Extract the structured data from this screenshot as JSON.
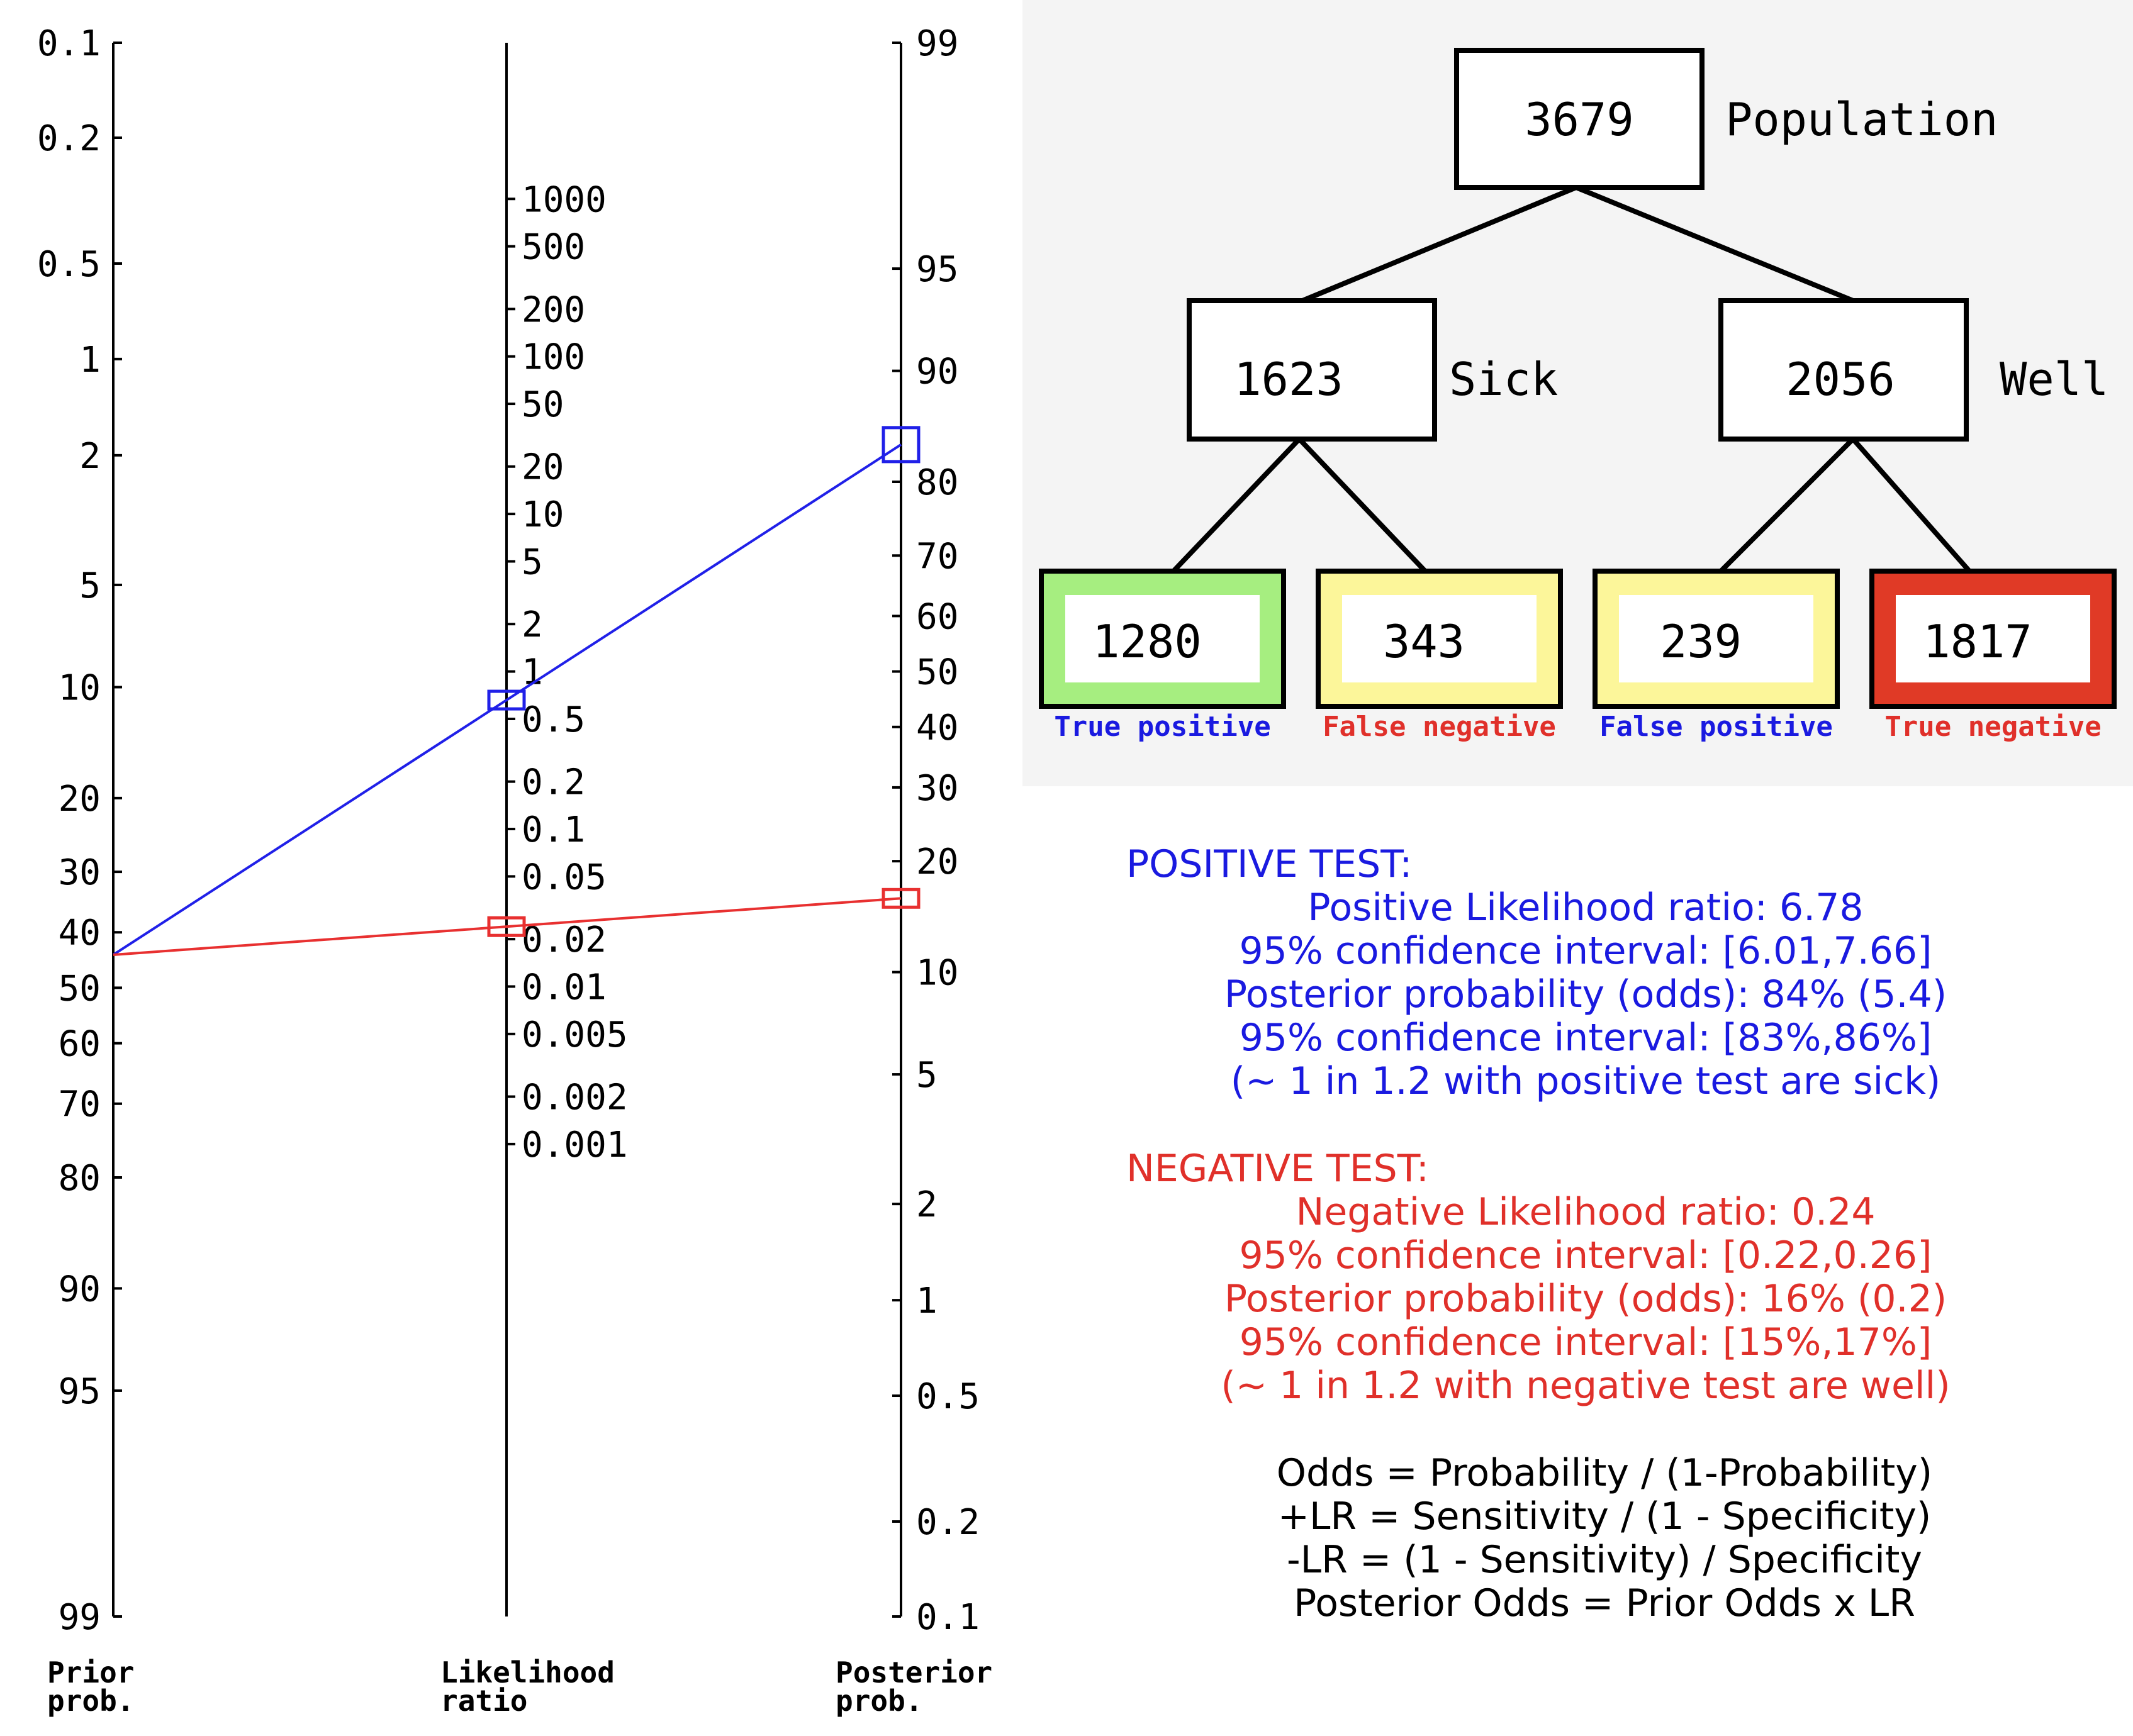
{
  "nomogram": {
    "prior": {
      "ticks": [
        "0.1",
        "0.2",
        "0.5",
        "1",
        "2",
        "5",
        "10",
        "20",
        "30",
        "40",
        "50",
        "60",
        "70",
        "80",
        "90",
        "95",
        "99"
      ],
      "label_line1": "Prior",
      "label_line2": "prob."
    },
    "lr": {
      "ticks": [
        "1000",
        "500",
        "200",
        "100",
        "50",
        "20",
        "10",
        "5",
        "2",
        "1",
        "0.5",
        "0.2",
        "0.1",
        "0.05",
        "0.02",
        "0.01",
        "0.005",
        "0.002",
        "0.001"
      ],
      "label_line1": "Likelihood",
      "label_line2": "ratio"
    },
    "posterior": {
      "ticks": [
        "99",
        "95",
        "90",
        "80",
        "70",
        "60",
        "50",
        "40",
        "30",
        "20",
        "10",
        "5",
        "2",
        "1",
        "0.5",
        "0.2",
        "0.1"
      ],
      "label_line1": "Posterior",
      "label_line2": "prob."
    },
    "colors": {
      "positive": "#2020e8",
      "negative": "#e83030"
    }
  },
  "chart_data": {
    "type": "line",
    "prior_probability_percent": 44,
    "series": [
      {
        "name": "POSITIVE TEST",
        "likelihood_ratio": 6.78,
        "posterior_percent": 84
      },
      {
        "name": "NEGATIVE TEST",
        "likelihood_ratio": 0.24,
        "posterior_percent": 16
      }
    ]
  },
  "tree": {
    "population": {
      "value": "3679",
      "label": "Population"
    },
    "sick": {
      "value": "1623",
      "label": "Sick"
    },
    "well": {
      "value": "2056",
      "label": "Well"
    },
    "leaves": [
      {
        "value": "1280",
        "label": "True positive",
        "fill": "#a6ee80",
        "label_color": "#1a1ae0"
      },
      {
        "value": "343",
        "label": "False negative",
        "fill": "#fcf69a",
        "label_color": "#e0302a"
      },
      {
        "value": "239",
        "label": "False positive",
        "fill": "#fcf69a",
        "label_color": "#1a1ae0"
      },
      {
        "value": "1817",
        "label": "True negative",
        "fill": "#e03a26",
        "label_color": "#e0302a"
      }
    ]
  },
  "positive": {
    "heading": "POSITIVE TEST:",
    "lines": [
      "Positive Likelihood ratio: 6.78",
      "95% confidence interval: [6.01,7.66]",
      "Posterior probability (odds): 84% (5.4)",
      "95% confidence interval: [83%,86%]",
      "(~ 1 in 1.2 with positive test are sick)"
    ]
  },
  "negative": {
    "heading": "NEGATIVE TEST:",
    "lines": [
      "Negative Likelihood ratio: 0.24",
      "95% confidence interval: [0.22,0.26]",
      "Posterior probability (odds): 16% (0.2)",
      "95% confidence interval: [15%,17%]",
      "(~ 1 in 1.2 with negative test are well)"
    ]
  },
  "formulas": [
    "Odds = Probability / (1-Probability)",
    "+LR = Sensitivity / (1 - Specificity)",
    "-LR = (1 - Sensitivity) / Specificity",
    "Posterior Odds = Prior Odds x LR"
  ]
}
